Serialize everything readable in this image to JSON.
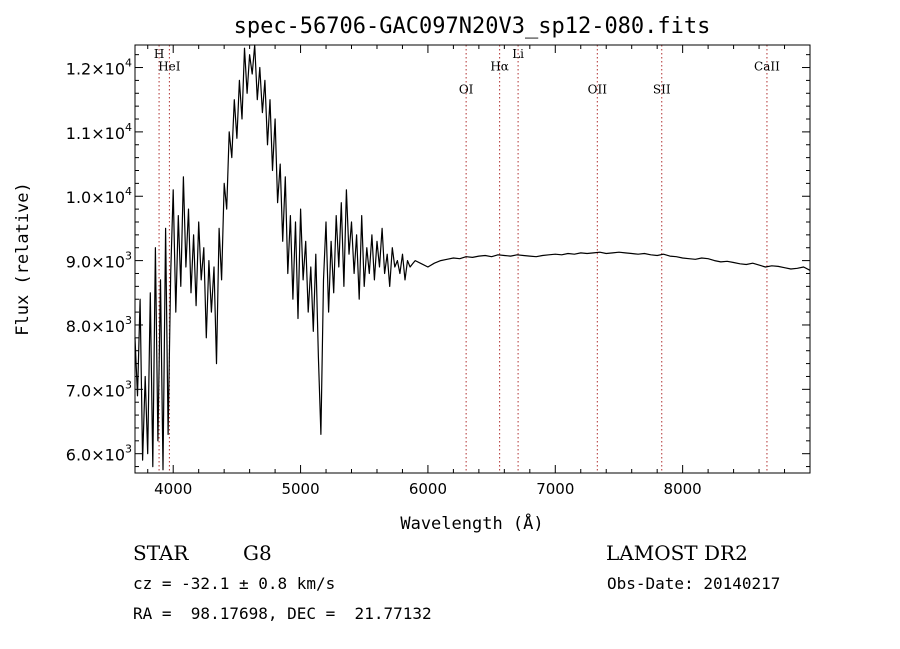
{
  "chart_data": {
    "type": "line",
    "title": "spec-56706-GAC097N20V3_sp12-080.fits",
    "xlabel": "Wavelength (Å)",
    "ylabel": "Flux (relative)",
    "xlim": [
      3700,
      9000
    ],
    "ylim": [
      5700,
      12350
    ],
    "grid": false,
    "x_ticks": [
      {
        "value": 4000,
        "label": "4000"
      },
      {
        "value": 5000,
        "label": "5000"
      },
      {
        "value": 6000,
        "label": "6000"
      },
      {
        "value": 7000,
        "label": "7000"
      },
      {
        "value": 8000,
        "label": "8000"
      }
    ],
    "y_ticks": [
      {
        "value": 6000,
        "mant": "6.0",
        "exp": "3"
      },
      {
        "value": 7000,
        "mant": "7.0",
        "exp": "3"
      },
      {
        "value": 8000,
        "mant": "8.0",
        "exp": "3"
      },
      {
        "value": 9000,
        "mant": "9.0",
        "exp": "3"
      },
      {
        "value": 10000,
        "mant": "1.0",
        "exp": "4"
      },
      {
        "value": 11000,
        "mant": "1.1",
        "exp": "4"
      },
      {
        "value": 12000,
        "mant": "1.2",
        "exp": "4"
      }
    ],
    "spectral_lines": [
      {
        "label": "H",
        "wavelength": 3889,
        "label_y": 12150
      },
      {
        "label": "HeI",
        "wavelength": 3970,
        "label_y": 11950
      },
      {
        "label": "OI",
        "wavelength": 6300,
        "label_y": 11600
      },
      {
        "label": "Hα",
        "wavelength": 6563,
        "label_y": 11950
      },
      {
        "label": "Li",
        "wavelength": 6708,
        "label_y": 12150
      },
      {
        "label": "OII",
        "wavelength": 7330,
        "label_y": 11600
      },
      {
        "label": "SII",
        "wavelength": 7836,
        "label_y": 11600
      },
      {
        "label": "CaII",
        "wavelength": 8662,
        "label_y": 11950
      }
    ],
    "series": [
      {
        "x": [
          3700,
          3720,
          3740,
          3760,
          3780,
          3800,
          3820,
          3840,
          3860,
          3880,
          3900,
          3920,
          3940,
          3960,
          3980,
          4000,
          4020,
          4040,
          4060,
          4080,
          4100,
          4120,
          4140,
          4160,
          4180,
          4200,
          4220,
          4240,
          4260,
          4280,
          4300,
          4320,
          4340,
          4360,
          4380,
          4400,
          4420,
          4440,
          4460,
          4480,
          4500,
          4520,
          4540,
          4560,
          4580,
          4600,
          4620,
          4640,
          4660,
          4680,
          4700,
          4720,
          4740,
          4760,
          4780,
          4800,
          4820,
          4840,
          4860,
          4880,
          4900,
          4920,
          4940,
          4960,
          4980,
          5000,
          5020,
          5040,
          5060,
          5080,
          5100,
          5120,
          5140,
          5160,
          5180,
          5200,
          5220,
          5240,
          5260,
          5280,
          5300,
          5320,
          5340,
          5360,
          5380,
          5400,
          5420,
          5440,
          5460,
          5480,
          5500,
          5520,
          5540,
          5560,
          5580,
          5600,
          5620,
          5640,
          5660,
          5680,
          5700,
          5720,
          5740,
          5760,
          5780,
          5800,
          5820,
          5840,
          5860,
          5880,
          5900,
          5950,
          6000,
          6050,
          6100,
          6150,
          6200,
          6250,
          6300,
          6350,
          6400,
          6450,
          6500,
          6550,
          6600,
          6650,
          6700,
          6750,
          6800,
          6850,
          6900,
          6950,
          7000,
          7050,
          7100,
          7150,
          7200,
          7250,
          7300,
          7350,
          7400,
          7450,
          7500,
          7550,
          7600,
          7650,
          7700,
          7750,
          7800,
          7850,
          7900,
          7950,
          8000,
          8050,
          8100,
          8150,
          8200,
          8250,
          8300,
          8350,
          8400,
          8450,
          8500,
          8550,
          8600,
          8650,
          8700,
          8750,
          8800,
          8850,
          8900,
          8950,
          9000
        ],
        "values": [
          7800,
          6900,
          8400,
          5900,
          7200,
          6000,
          8500,
          5800,
          9200,
          6200,
          8700,
          5750,
          9500,
          6300,
          8800,
          10100,
          8200,
          9700,
          8600,
          10300,
          8900,
          9800,
          8500,
          9400,
          8300,
          9600,
          8700,
          9200,
          7800,
          9000,
          8200,
          8900,
          7400,
          9500,
          8700,
          10200,
          9800,
          11000,
          10600,
          11500,
          10900,
          11800,
          11200,
          12300,
          11600,
          12200,
          11900,
          12350,
          11500,
          12000,
          11300,
          11800,
          10800,
          11500,
          10400,
          11200,
          9900,
          10500,
          9300,
          10300,
          8800,
          9700,
          8400,
          9600,
          8100,
          9800,
          8700,
          9300,
          8200,
          8900,
          7900,
          9100,
          7500,
          6300,
          8700,
          9600,
          8200,
          9300,
          8500,
          9700,
          8900,
          9900,
          8600,
          10100,
          9100,
          9600,
          8800,
          9400,
          8400,
          9700,
          8600,
          9200,
          8800,
          9400,
          8700,
          9300,
          8900,
          9500,
          8800,
          9100,
          8600,
          9200,
          8900,
          9000,
          8800,
          9100,
          8700,
          9000,
          8900,
          8950,
          9000,
          8950,
          8900,
          8960,
          9000,
          9020,
          9040,
          9030,
          9060,
          9050,
          9070,
          9080,
          9060,
          9090,
          9080,
          9070,
          9090,
          9080,
          9070,
          9060,
          9080,
          9090,
          9100,
          9090,
          9110,
          9100,
          9120,
          9110,
          9120,
          9130,
          9110,
          9120,
          9130,
          9120,
          9110,
          9100,
          9110,
          9090,
          9080,
          9100,
          9070,
          9060,
          9040,
          9030,
          9020,
          9040,
          9030,
          9000,
          8980,
          8990,
          8970,
          8950,
          8940,
          8960,
          8930,
          8900,
          8920,
          8910,
          8890,
          8870,
          8880,
          8900,
          8850
        ]
      }
    ]
  },
  "footer": {
    "object_type": "STAR",
    "subclass": "G8",
    "survey": "LAMOST DR2",
    "cz": "cz = -32.1 ± 0.8 km/s",
    "obs_date": "Obs-Date: 20140217",
    "coords": "RA =  98.17698, DEC =  21.77132"
  },
  "colors": {
    "line": "#000000",
    "marker_line": "#b03030",
    "background": "#ffffff"
  }
}
